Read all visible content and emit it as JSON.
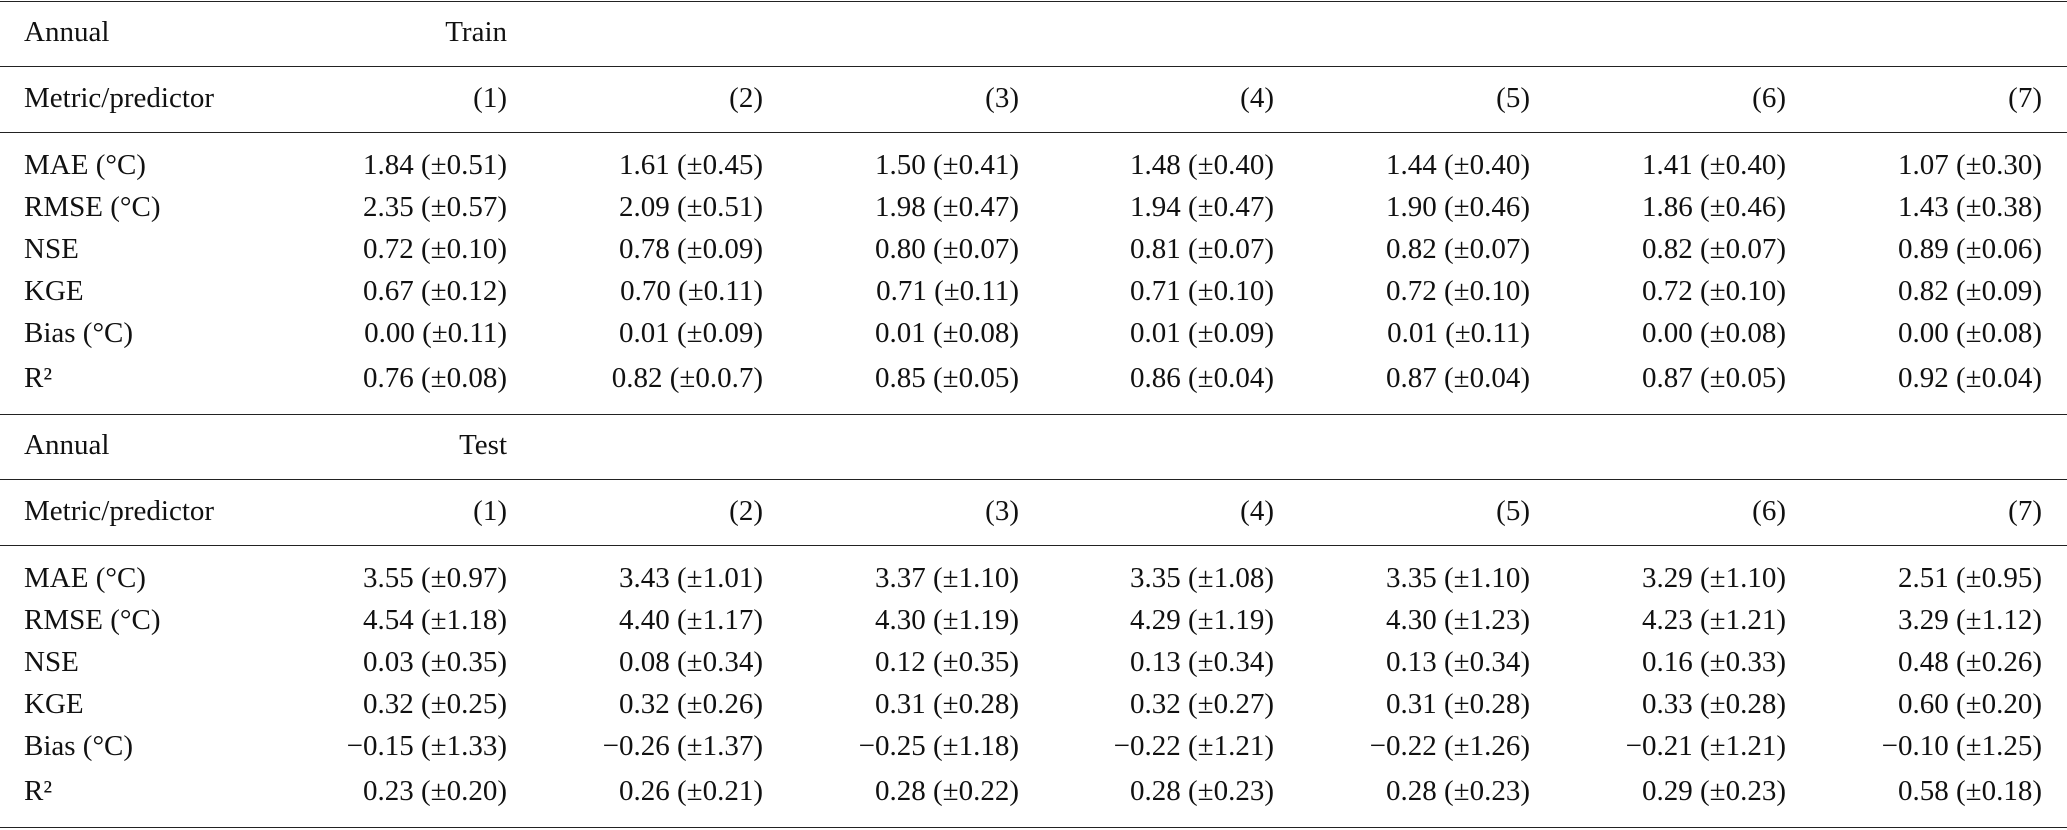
{
  "tables": [
    {
      "header": [
        "Annual",
        "Train"
      ],
      "columns": [
        "Metric/predictor",
        "(1)",
        "(2)",
        "(3)",
        "(4)",
        "(5)",
        "(6)",
        "(7)"
      ],
      "rows": [
        [
          "MAE (°C)",
          "1.84 (±0.51)",
          "1.61 (±0.45)",
          "1.50 (±0.41)",
          "1.48 (±0.40)",
          "1.44 (±0.40)",
          "1.41 (±0.40)",
          "1.07 (±0.30)"
        ],
        [
          "RMSE (°C)",
          "2.35 (±0.57)",
          "2.09 (±0.51)",
          "1.98 (±0.47)",
          "1.94 (±0.47)",
          "1.90 (±0.46)",
          "1.86 (±0.46)",
          "1.43 (±0.38)"
        ],
        [
          "NSE",
          "0.72 (±0.10)",
          "0.78 (±0.09)",
          "0.80 (±0.07)",
          "0.81 (±0.07)",
          "0.82 (±0.07)",
          "0.82 (±0.07)",
          "0.89 (±0.06)"
        ],
        [
          "KGE",
          "0.67 (±0.12)",
          "0.70 (±0.11)",
          "0.71 (±0.11)",
          "0.71 (±0.10)",
          "0.72 (±0.10)",
          "0.72 (±0.10)",
          "0.82 (±0.09)"
        ],
        [
          "Bias (°C)",
          "0.00 (±0.11)",
          "0.01 (±0.09)",
          "0.01 (±0.08)",
          "0.01 (±0.09)",
          "0.01 (±0.11)",
          "0.00 (±0.08)",
          "0.00 (±0.08)"
        ],
        [
          "R²",
          "0.76 (±0.08)",
          "0.82 (±0.0.7)",
          "0.85 (±0.05)",
          "0.86 (±0.04)",
          "0.87 (±0.04)",
          "0.87 (±0.05)",
          "0.92 (±0.04)"
        ]
      ]
    },
    {
      "header": [
        "Annual",
        "Test"
      ],
      "columns": [
        "Metric/predictor",
        "(1)",
        "(2)",
        "(3)",
        "(4)",
        "(5)",
        "(6)",
        "(7)"
      ],
      "rows": [
        [
          "MAE (°C)",
          "3.55 (±0.97)",
          "3.43 (±1.01)",
          "3.37 (±1.10)",
          "3.35 (±1.08)",
          "3.35 (±1.10)",
          "3.29 (±1.10)",
          "2.51 (±0.95)"
        ],
        [
          "RMSE (°C)",
          "4.54 (±1.18)",
          "4.40 (±1.17)",
          "4.30 (±1.19)",
          "4.29 (±1.19)",
          "4.30 (±1.23)",
          "4.23 (±1.21)",
          "3.29 (±1.12)"
        ],
        [
          "NSE",
          "0.03 (±0.35)",
          "0.08 (±0.34)",
          "0.12 (±0.35)",
          "0.13 (±0.34)",
          "0.13 (±0.34)",
          "0.16 (±0.33)",
          "0.48 (±0.26)"
        ],
        [
          "KGE",
          "0.32 (±0.25)",
          "0.32 (±0.26)",
          "0.31 (±0.28)",
          "0.32 (±0.27)",
          "0.31 (±0.28)",
          "0.33 (±0.28)",
          "0.60 (±0.20)"
        ],
        [
          "Bias (°C)",
          "−0.15 (±1.33)",
          "−0.26 (±1.37)",
          "−0.25 (±1.18)",
          "−0.22 (±1.21)",
          "−0.22 (±1.26)",
          "−0.21 (±1.21)",
          "−0.10 (±1.25)"
        ],
        [
          "R²",
          "0.23 (±0.20)",
          "0.26 (±0.21)",
          "0.28 (±0.22)",
          "0.28 (±0.23)",
          "0.28 (±0.23)",
          "0.29 (±0.23)",
          "0.58 (±0.18)"
        ]
      ]
    }
  ]
}
